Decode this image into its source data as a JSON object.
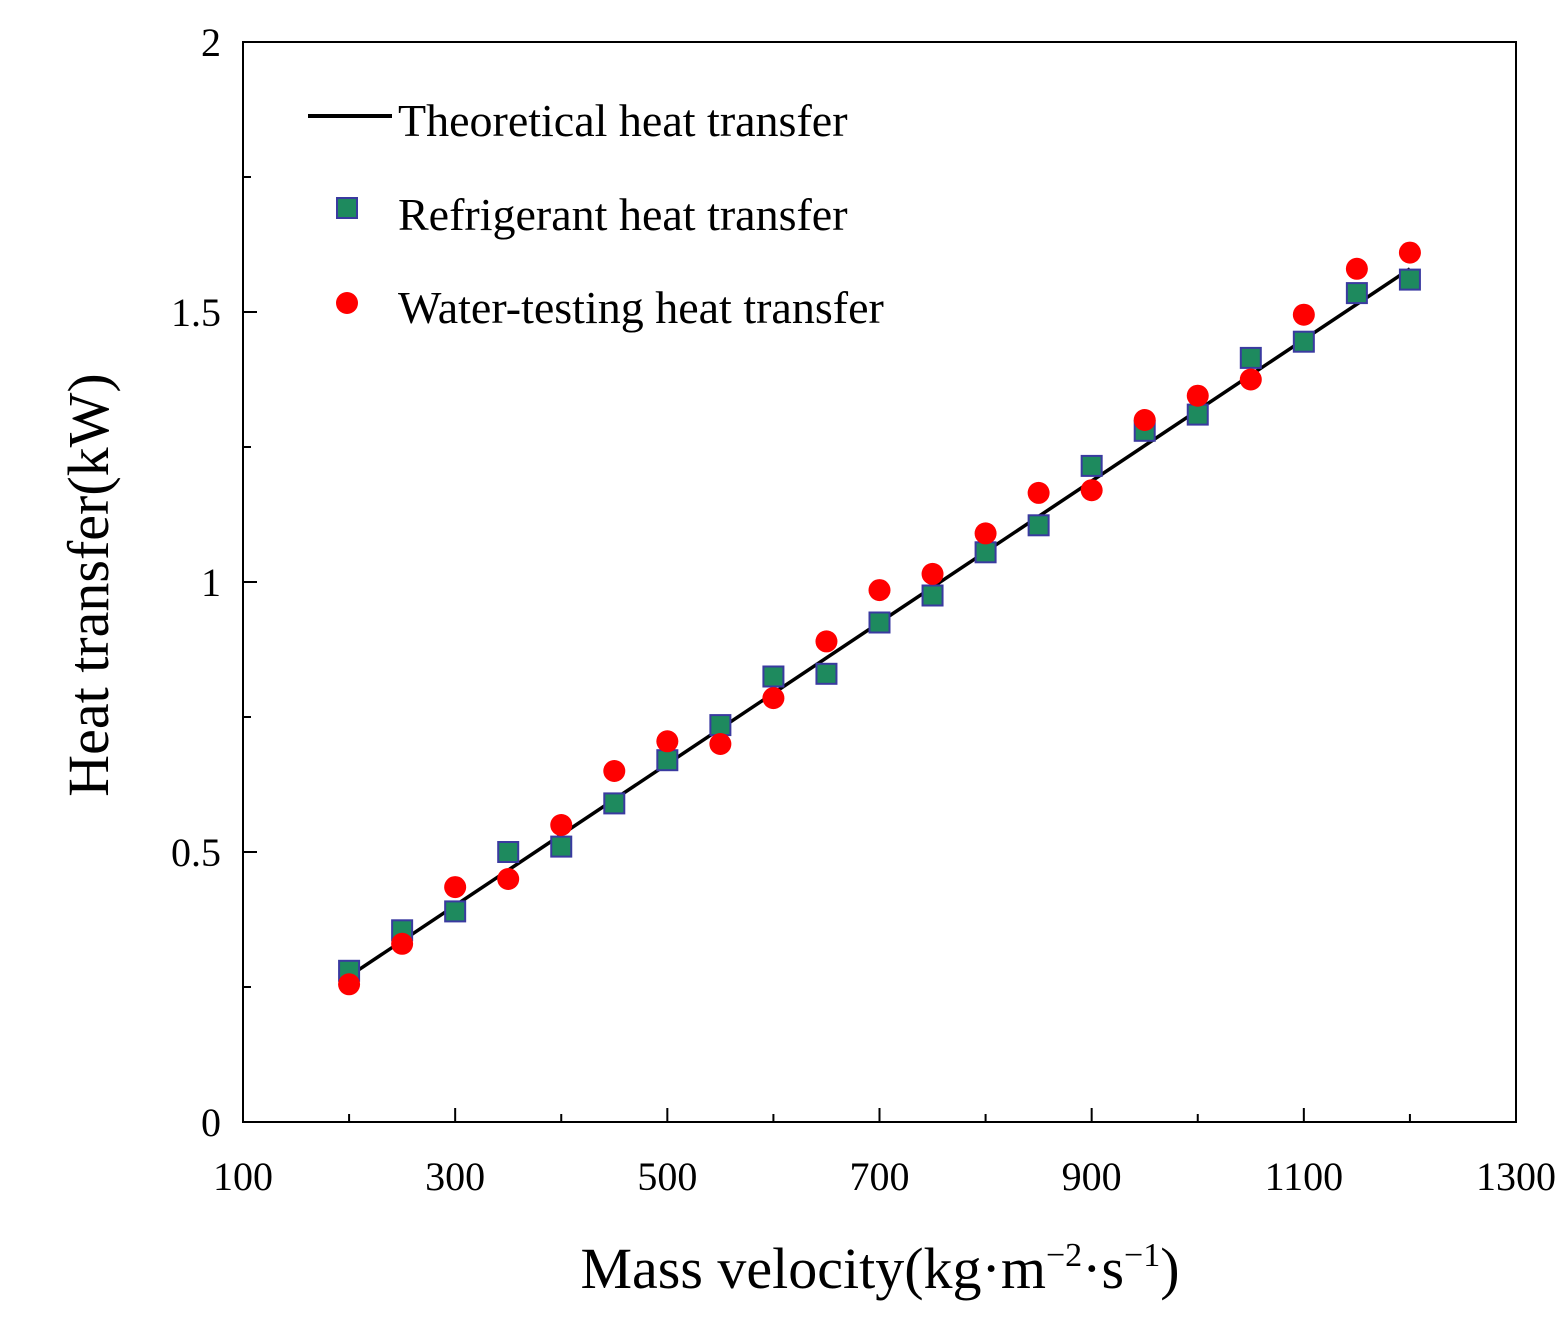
{
  "chart_data": {
    "type": "scatter",
    "title": "",
    "xlabel": "Mass velocity(kg·m⁻²·s⁻¹)",
    "xlabel_parts": {
      "base": "Mass velocity(kg·m",
      "sup1": "−2",
      "mid": "·s",
      "sup2": "−1",
      "end": ")"
    },
    "ylabel": "Heat transfer(kW)",
    "xlim": [
      100,
      1300
    ],
    "ylim": [
      0,
      2
    ],
    "x_ticks": [
      100,
      300,
      500,
      700,
      900,
      1100,
      1300
    ],
    "x_tick_labels": [
      "100",
      "300",
      "500",
      "700",
      "900",
      "1100",
      "1300"
    ],
    "y_ticks": [
      0,
      0.5,
      1,
      1.5,
      2
    ],
    "y_tick_labels": [
      "0",
      "0.5",
      "1",
      "1.5",
      "2"
    ],
    "x_minor_ticks": [
      200,
      400,
      600,
      800,
      1000,
      1200
    ],
    "y_minor_ticks": [
      0.25,
      0.75,
      1.25,
      1.75
    ],
    "grid": false,
    "legend_position": "top-left",
    "x": [
      200,
      250,
      300,
      350,
      400,
      450,
      500,
      550,
      600,
      650,
      700,
      750,
      800,
      850,
      900,
      950,
      1000,
      1050,
      1100,
      1150,
      1200
    ],
    "series": [
      {
        "name": "Theoretical heat transfer",
        "kind": "line",
        "color": "#000000",
        "x": [
          200,
          1200
        ],
        "values": [
          0.27,
          1.58
        ]
      },
      {
        "name": "Refrigerant heat transfer",
        "kind": "square",
        "color": "#1e8a5e",
        "edge": "#3a3aa0",
        "values": [
          0.28,
          0.355,
          0.39,
          0.5,
          0.51,
          0.59,
          0.67,
          0.735,
          0.825,
          0.83,
          0.925,
          0.975,
          1.055,
          1.105,
          1.215,
          1.28,
          1.31,
          1.415,
          1.445,
          1.535,
          1.56
        ]
      },
      {
        "name": "Water-testing heat transfer",
        "kind": "circle",
        "color": "#ff0000",
        "values": [
          0.255,
          0.33,
          0.435,
          0.45,
          0.55,
          0.65,
          0.705,
          0.7,
          0.785,
          0.89,
          0.985,
          1.015,
          1.09,
          1.165,
          1.17,
          1.3,
          1.345,
          1.375,
          1.495,
          1.58,
          1.61
        ]
      }
    ]
  }
}
